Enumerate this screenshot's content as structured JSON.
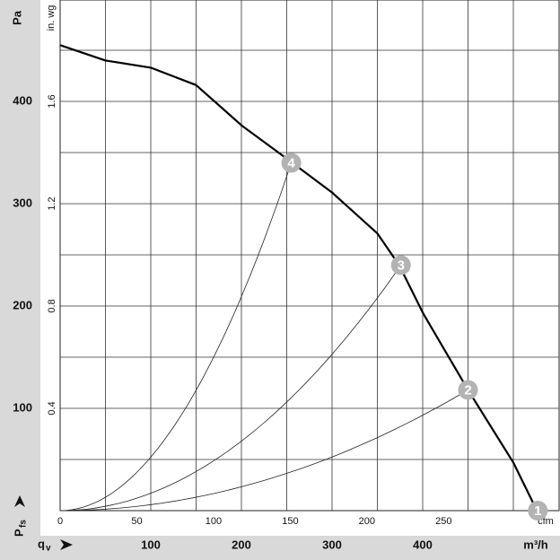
{
  "chart_data": {
    "type": "line",
    "y_label": "Pa",
    "y2_label": "in. wg",
    "x_label": "m³/h",
    "x2_label": "cfm",
    "pressure_symbol": "P",
    "pressure_sub": "fs",
    "flow_symbol": "q",
    "flow_sub": "v",
    "xlim": [
      0,
      550
    ],
    "xticks": [
      100,
      200,
      300,
      400
    ],
    "x2lim": [
      0,
      325
    ],
    "x2ticks": [
      0,
      50,
      100,
      150,
      200,
      250
    ],
    "ylim": [
      0,
      500
    ],
    "yticks": [
      100,
      200,
      300,
      400
    ],
    "y2lim": [
      0,
      2.0
    ],
    "y2ticks": [
      0.4,
      0.8,
      1.2,
      1.6
    ],
    "xgrid": [
      50,
      100,
      150,
      200,
      250,
      300,
      350,
      400,
      450,
      500
    ],
    "ygrid": [
      50,
      100,
      150,
      200,
      250,
      300,
      350,
      400,
      450
    ],
    "series": [
      {
        "name": "fan curve",
        "color": "#000000",
        "x": [
          0,
          50,
          100,
          150,
          201,
          250,
          300,
          350,
          374,
          401,
          450,
          500,
          526
        ],
        "values": [
          455,
          440,
          433,
          416,
          376,
          344,
          311,
          271,
          240,
          192,
          118,
          47,
          0
        ]
      }
    ],
    "points": [
      {
        "label": "1",
        "x": 527,
        "value": 0
      },
      {
        "label": "2",
        "x": 450,
        "value": 118
      },
      {
        "label": "3",
        "x": 376,
        "value": 240
      },
      {
        "label": "4",
        "x": 255,
        "value": 340
      }
    ],
    "point_color": "#b3b3b3"
  }
}
